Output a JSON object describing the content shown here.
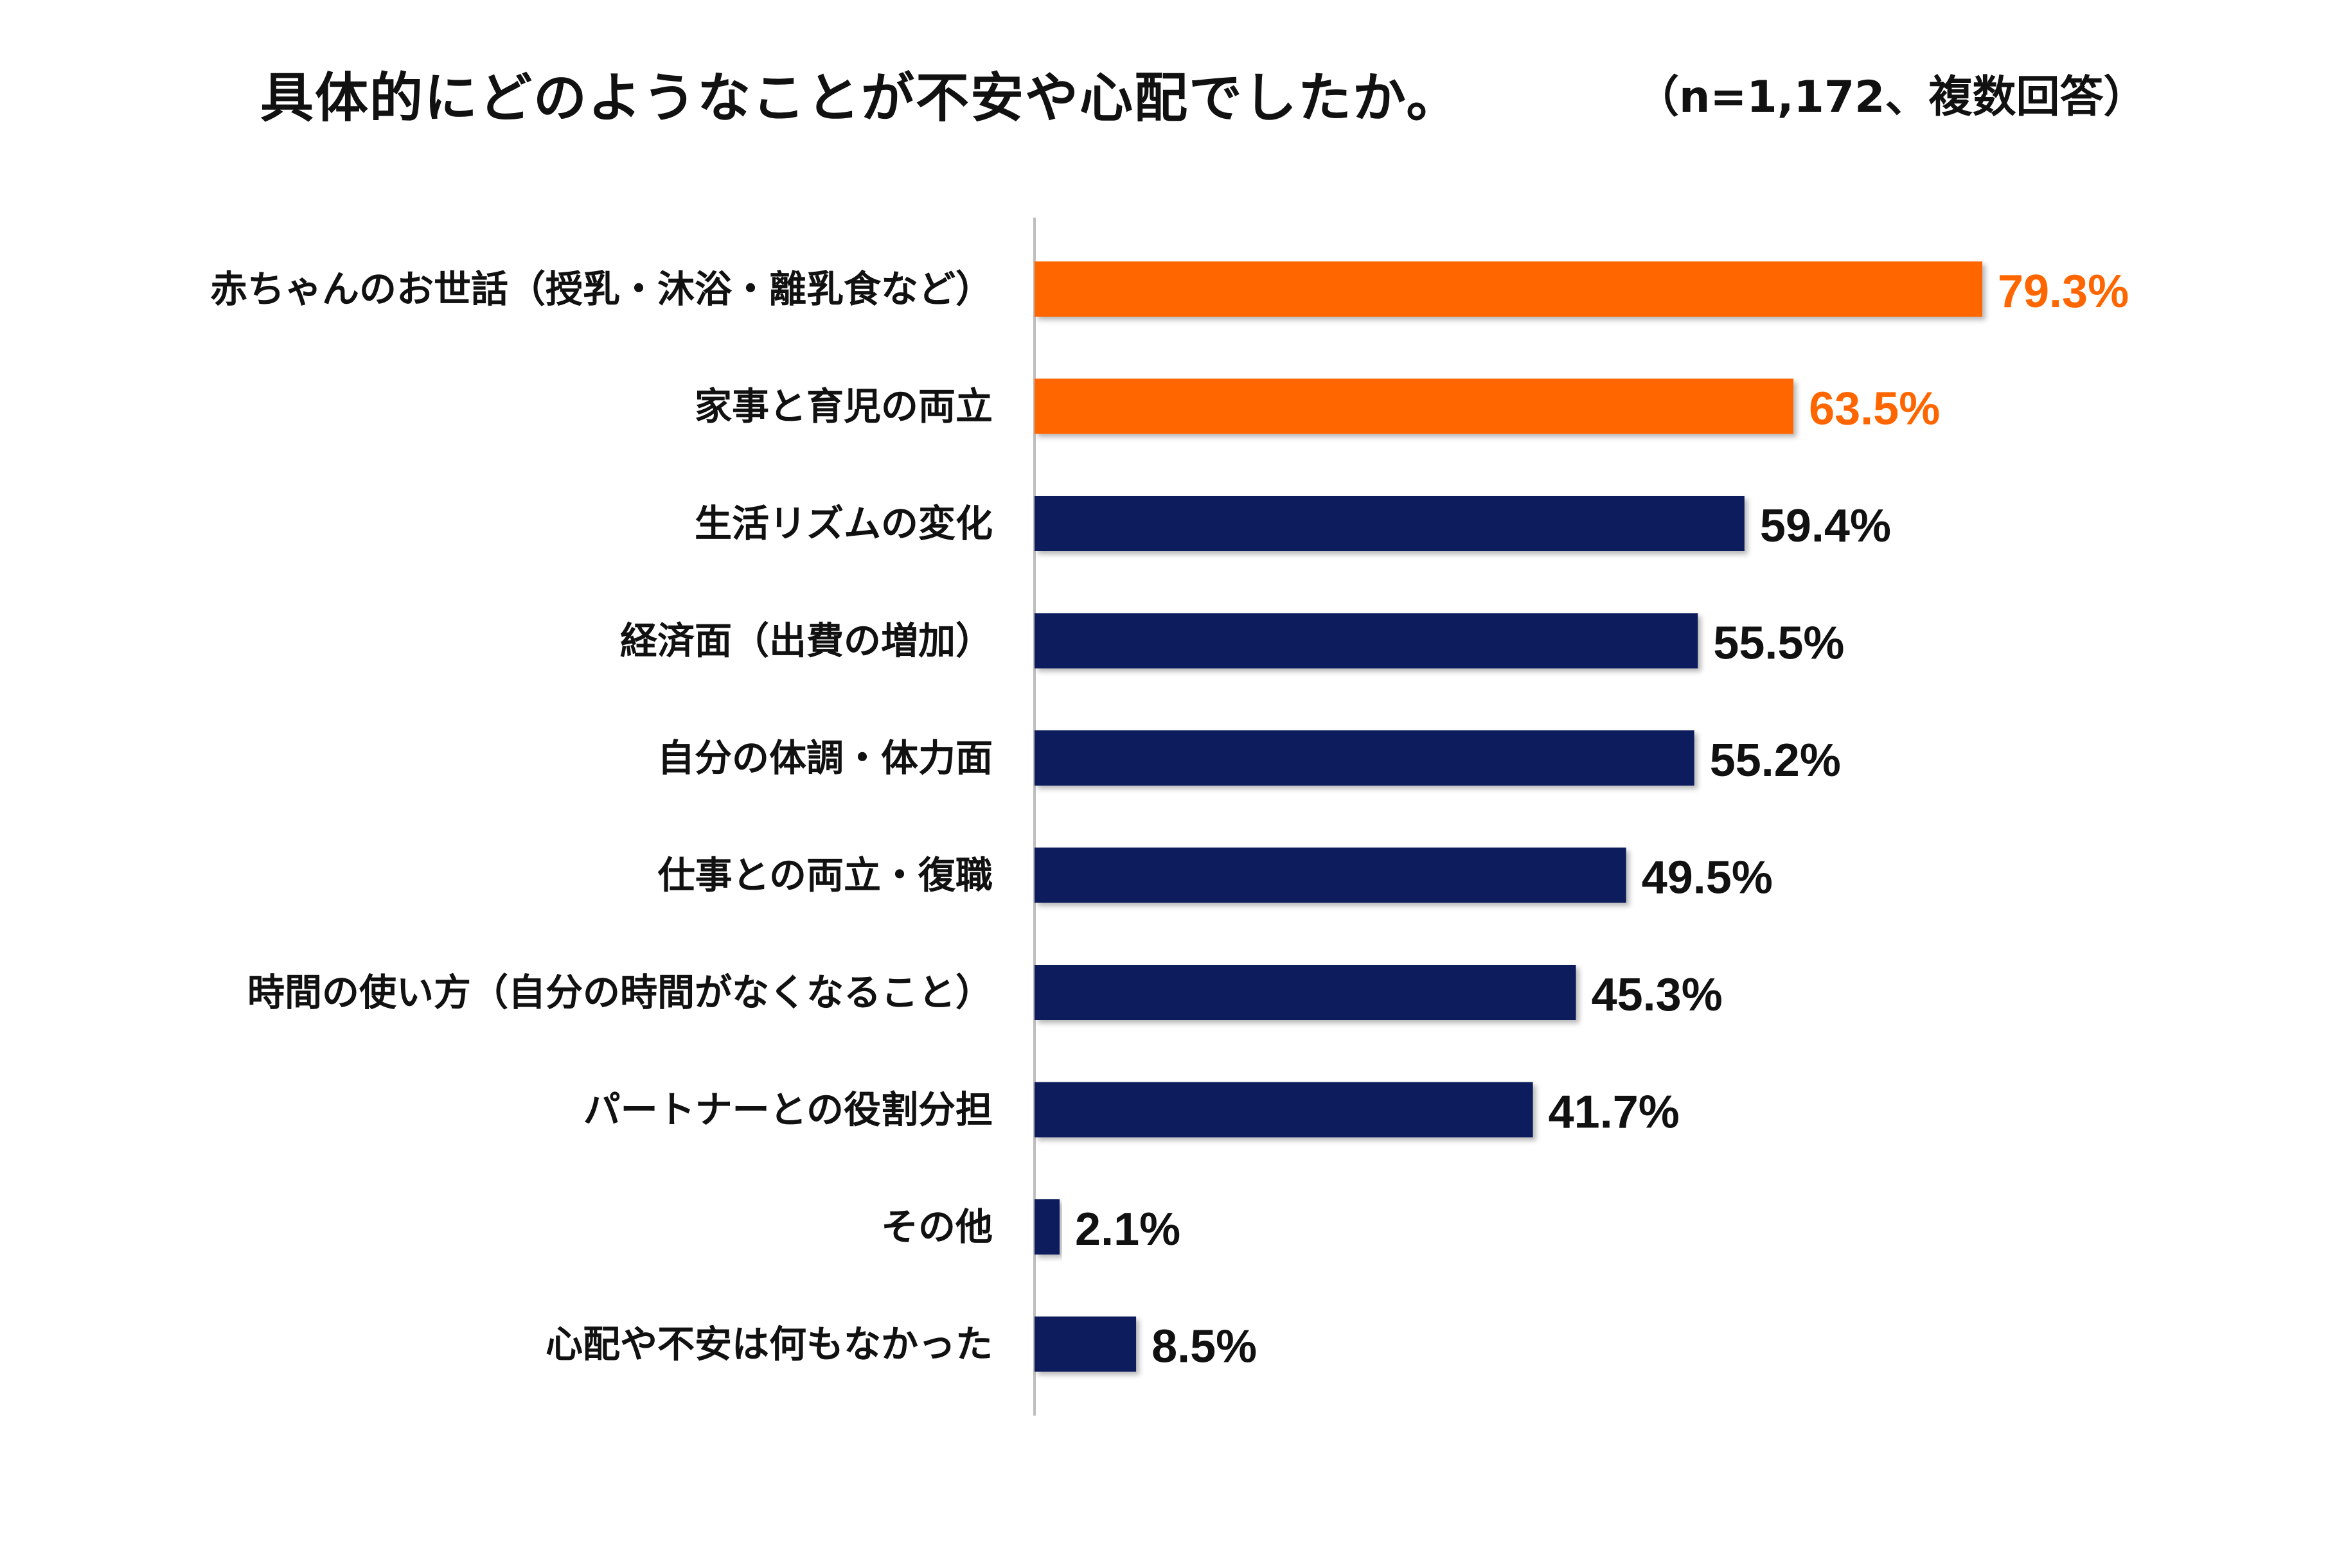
{
  "header": {
    "title": "具体的にどのようなことが不安や心配でしたか。",
    "note": "（n=1,172、複数回答）"
  },
  "colors": {
    "highlight": "#FF6600",
    "base": "#0A1F5C",
    "axis": "#BFBFBF",
    "text": "#111111"
  },
  "chart_data": {
    "type": "bar",
    "orientation": "horizontal",
    "title": "具体的にどのようなことが不安や心配でしたか。",
    "note": "（n=1,172、複数回答）",
    "categories": [
      "赤ちゃんのお世話（授乳・沐浴・離乳食など）",
      "家事と育児の両立",
      "生活リズムの変化",
      "経済面（出費の増加）",
      "自分の体調・体力面",
      "仕事との両立・復職",
      "時間の使い方（自分の時間がなくなること）",
      "パートナーとの役割分担",
      "その他",
      "心配や不安は何もなかった"
    ],
    "values": [
      79.3,
      63.5,
      59.4,
      55.5,
      55.2,
      49.5,
      45.3,
      41.7,
      2.1,
      8.5
    ],
    "value_labels": [
      "79.3%",
      "63.5%",
      "59.4%",
      "55.5%",
      "55.2%",
      "49.5%",
      "45.3%",
      "41.7%",
      "2.1%",
      "8.5%"
    ],
    "highlighted": [
      true,
      true,
      false,
      false,
      false,
      false,
      false,
      false,
      false,
      false
    ],
    "unit": "%",
    "xlim": [
      0,
      100
    ],
    "grid": false,
    "legend": "none"
  }
}
